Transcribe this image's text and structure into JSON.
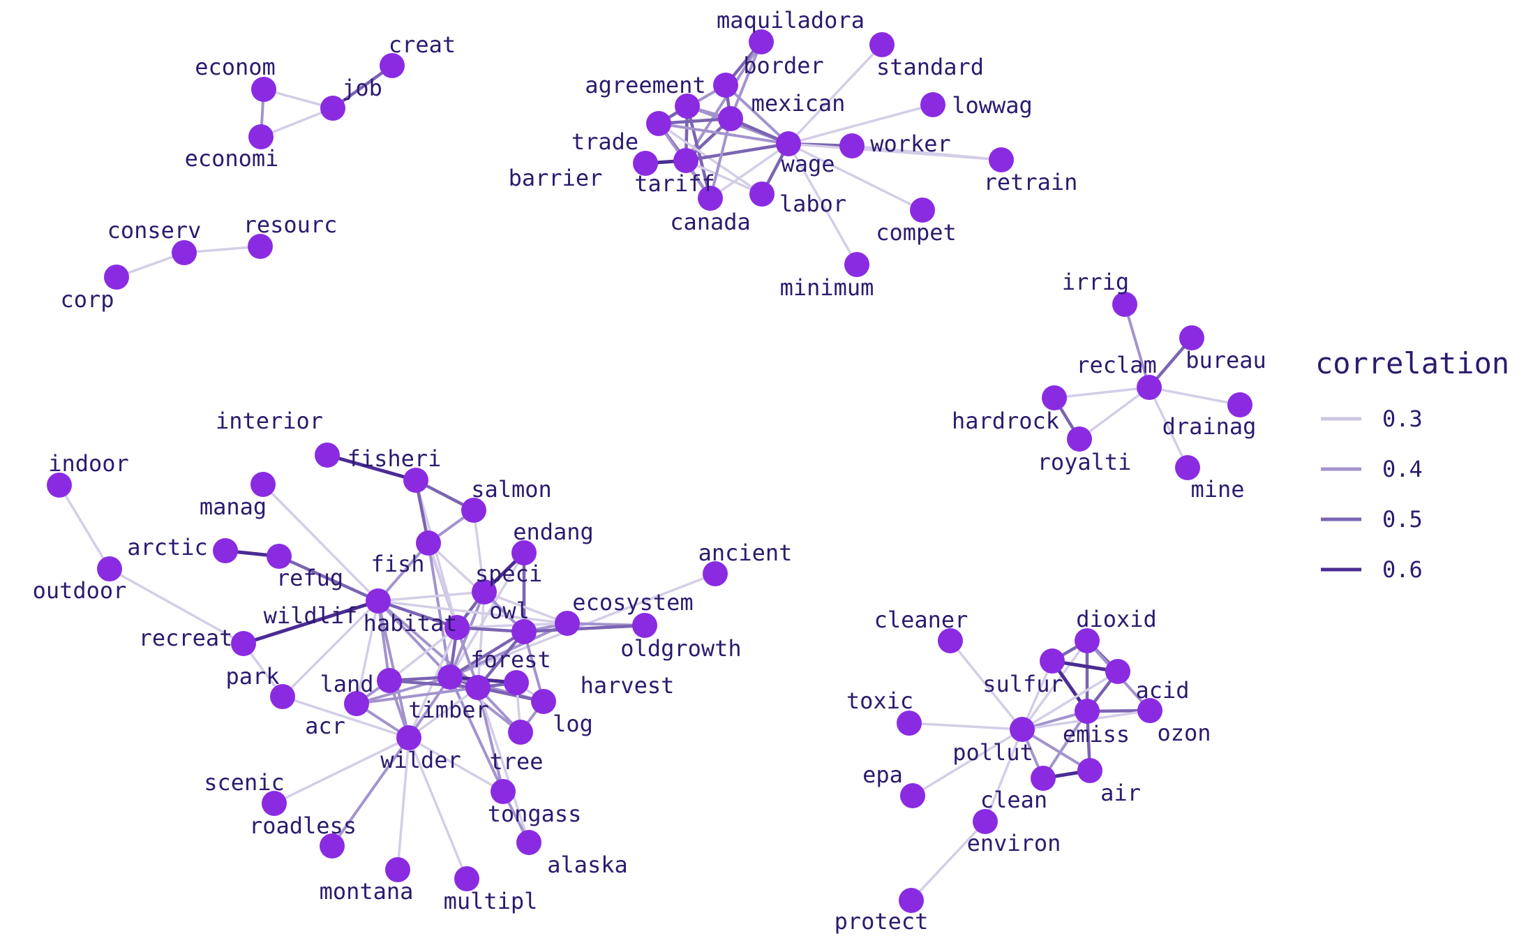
{
  "chart_data": {
    "type": "network",
    "title": "",
    "node_color": "#8a2be2",
    "label_color": "#2d1a6e",
    "legend": {
      "title": "correlation",
      "placement": "right",
      "entries": [
        {
          "label": "0.3",
          "value": 0.3
        },
        {
          "label": "0.4",
          "value": 0.4
        },
        {
          "label": "0.5",
          "value": 0.5
        },
        {
          "label": "0.6",
          "value": 0.6
        }
      ]
    },
    "nodes": [
      {
        "id": "econom"
      },
      {
        "id": "economi"
      },
      {
        "id": "job"
      },
      {
        "id": "creat"
      },
      {
        "id": "conserv"
      },
      {
        "id": "corp"
      },
      {
        "id": "resourc"
      },
      {
        "id": "maquiladora"
      },
      {
        "id": "standard"
      },
      {
        "id": "border"
      },
      {
        "id": "agreement"
      },
      {
        "id": "mexican"
      },
      {
        "id": "lowwag"
      },
      {
        "id": "trade"
      },
      {
        "id": "worker"
      },
      {
        "id": "wage"
      },
      {
        "id": "retrain"
      },
      {
        "id": "barrier"
      },
      {
        "id": "tariff"
      },
      {
        "id": "labor"
      },
      {
        "id": "canada"
      },
      {
        "id": "compet"
      },
      {
        "id": "minimum"
      },
      {
        "id": "irrig"
      },
      {
        "id": "bureau"
      },
      {
        "id": "reclam"
      },
      {
        "id": "hardrock"
      },
      {
        "id": "drainag"
      },
      {
        "id": "royalti"
      },
      {
        "id": "mine"
      },
      {
        "id": "interior"
      },
      {
        "id": "fisheri"
      },
      {
        "id": "indoor"
      },
      {
        "id": "salmon"
      },
      {
        "id": "manag"
      },
      {
        "id": "endang"
      },
      {
        "id": "arctic"
      },
      {
        "id": "fish"
      },
      {
        "id": "refug"
      },
      {
        "id": "speci"
      },
      {
        "id": "ancient"
      },
      {
        "id": "outdoor"
      },
      {
        "id": "ecosystem"
      },
      {
        "id": "wildlif"
      },
      {
        "id": "owl"
      },
      {
        "id": "habitat"
      },
      {
        "id": "oldgrowth"
      },
      {
        "id": "recreat"
      },
      {
        "id": "forest"
      },
      {
        "id": "park"
      },
      {
        "id": "harvest"
      },
      {
        "id": "land"
      },
      {
        "id": "log"
      },
      {
        "id": "acr"
      },
      {
        "id": "timber"
      },
      {
        "id": "wilder"
      },
      {
        "id": "tree"
      },
      {
        "id": "scenic"
      },
      {
        "id": "tongass"
      },
      {
        "id": "roadless"
      },
      {
        "id": "alaska"
      },
      {
        "id": "montana"
      },
      {
        "id": "multipl"
      },
      {
        "id": "cleaner"
      },
      {
        "id": "dioxid"
      },
      {
        "id": "sulfur"
      },
      {
        "id": "acid"
      },
      {
        "id": "toxic"
      },
      {
        "id": "emiss"
      },
      {
        "id": "ozon"
      },
      {
        "id": "pollut"
      },
      {
        "id": "epa"
      },
      {
        "id": "air"
      },
      {
        "id": "clean"
      },
      {
        "id": "environ"
      },
      {
        "id": "protect"
      }
    ],
    "edges": [
      {
        "source": "econom",
        "target": "economi",
        "correlation": 0.45
      },
      {
        "source": "econom",
        "target": "job",
        "correlation": 0.3
      },
      {
        "source": "economi",
        "target": "job",
        "correlation": 0.3
      },
      {
        "source": "job",
        "target": "creat",
        "correlation": 0.5
      },
      {
        "source": "conserv",
        "target": "corp",
        "correlation": 0.3
      },
      {
        "source": "conserv",
        "target": "resourc",
        "correlation": 0.3
      },
      {
        "source": "maquiladora",
        "target": "border",
        "correlation": 0.5
      },
      {
        "source": "maquiladora",
        "target": "mexican",
        "correlation": 0.4
      },
      {
        "source": "maquiladora",
        "target": "tariff",
        "correlation": 0.45
      },
      {
        "source": "standard",
        "target": "wage",
        "correlation": 0.28
      },
      {
        "source": "border",
        "target": "mexican",
        "correlation": 0.5
      },
      {
        "source": "border",
        "target": "trade",
        "correlation": 0.4
      },
      {
        "source": "border",
        "target": "wage",
        "correlation": 0.4
      },
      {
        "source": "agreement",
        "target": "trade",
        "correlation": 0.55
      },
      {
        "source": "agreement",
        "target": "mexican",
        "correlation": 0.45
      },
      {
        "source": "agreement",
        "target": "canada",
        "correlation": 0.5
      },
      {
        "source": "agreement",
        "target": "tariff",
        "correlation": 0.5
      },
      {
        "source": "agreement",
        "target": "wage",
        "correlation": 0.4
      },
      {
        "source": "mexican",
        "target": "wage",
        "correlation": 0.55
      },
      {
        "source": "mexican",
        "target": "tariff",
        "correlation": 0.5
      },
      {
        "source": "mexican",
        "target": "trade",
        "correlation": 0.55
      },
      {
        "source": "lowwag",
        "target": "wage",
        "correlation": 0.3
      },
      {
        "source": "trade",
        "target": "tariff",
        "correlation": 0.55
      },
      {
        "source": "trade",
        "target": "canada",
        "correlation": 0.45
      },
      {
        "source": "trade",
        "target": "wage",
        "correlation": 0.4
      },
      {
        "source": "trade",
        "target": "labor",
        "correlation": 0.35
      },
      {
        "source": "worker",
        "target": "wage",
        "correlation": 0.5
      },
      {
        "source": "worker",
        "target": "retrain",
        "correlation": 0.3
      },
      {
        "source": "wage",
        "target": "minimum",
        "correlation": 0.35
      },
      {
        "source": "wage",
        "target": "compet",
        "correlation": 0.3
      },
      {
        "source": "wage",
        "target": "labor",
        "correlation": 0.5
      },
      {
        "source": "wage",
        "target": "tariff",
        "correlation": 0.5
      },
      {
        "source": "wage",
        "target": "canada",
        "correlation": 0.35
      },
      {
        "source": "wage",
        "target": "retrain",
        "correlation": 0.28
      },
      {
        "source": "barrier",
        "target": "tariff",
        "correlation": 0.62
      },
      {
        "source": "tariff",
        "target": "canada",
        "correlation": 0.45
      },
      {
        "source": "tariff",
        "target": "labor",
        "correlation": 0.35
      },
      {
        "source": "canada",
        "target": "mexican",
        "correlation": 0.4
      },
      {
        "source": "irrig",
        "target": "reclam",
        "correlation": 0.4
      },
      {
        "source": "bureau",
        "target": "reclam",
        "correlation": 0.55
      },
      {
        "source": "reclam",
        "target": "hardrock",
        "correlation": 0.3
      },
      {
        "source": "reclam",
        "target": "royalti",
        "correlation": 0.3
      },
      {
        "source": "reclam",
        "target": "drainag",
        "correlation": 0.3
      },
      {
        "source": "reclam",
        "target": "mine",
        "correlation": 0.3
      },
      {
        "source": "hardrock",
        "target": "royalti",
        "correlation": 0.55
      },
      {
        "source": "interior",
        "target": "fisheri",
        "correlation": 0.6
      },
      {
        "source": "fisheri",
        "target": "habitat",
        "correlation": 0.3
      },
      {
        "source": "indoor",
        "target": "outdoor",
        "correlation": 0.3
      },
      {
        "source": "outdoor",
        "target": "recreat",
        "correlation": 0.3
      },
      {
        "source": "fish",
        "target": "salmon",
        "correlation": 0.45
      },
      {
        "source": "fish",
        "target": "wildlif",
        "correlation": 0.45
      },
      {
        "source": "fish",
        "target": "habitat",
        "correlation": 0.45
      },
      {
        "source": "fish",
        "target": "forest",
        "correlation": 0.45
      },
      {
        "source": "fish",
        "target": "timber",
        "correlation": 0.35
      },
      {
        "source": "fish",
        "target": "owl",
        "correlation": 0.35
      },
      {
        "source": "salmon",
        "target": "fisheri",
        "correlation": 0.5
      },
      {
        "source": "salmon",
        "target": "speci",
        "correlation": 0.35
      },
      {
        "source": "endang",
        "target": "speci",
        "correlation": 0.6
      },
      {
        "source": "endang",
        "target": "owl",
        "correlation": 0.5
      },
      {
        "source": "endang",
        "target": "forest",
        "correlation": 0.3
      },
      {
        "source": "arctic",
        "target": "refug",
        "correlation": 0.6
      },
      {
        "source": "refug",
        "target": "wildlif",
        "correlation": 0.5
      },
      {
        "source": "fisheri",
        "target": "fish",
        "correlation": 0.5
      },
      {
        "source": "speci",
        "target": "habitat",
        "correlation": 0.5
      },
      {
        "source": "speci",
        "target": "owl",
        "correlation": 0.45
      },
      {
        "source": "speci",
        "target": "forest",
        "correlation": 0.45
      },
      {
        "source": "speci",
        "target": "ecosystem",
        "correlation": 0.35
      },
      {
        "source": "speci",
        "target": "timber",
        "correlation": 0.35
      },
      {
        "source": "speci",
        "target": "wildlif",
        "correlation": 0.35
      },
      {
        "source": "ancient",
        "target": "forest",
        "correlation": 0.3
      },
      {
        "source": "ecosystem",
        "target": "oldgrowth",
        "correlation": 0.45
      },
      {
        "source": "ecosystem",
        "target": "owl",
        "correlation": 0.45
      },
      {
        "source": "ecosystem",
        "target": "forest",
        "correlation": 0.4
      },
      {
        "source": "ecosystem",
        "target": "habitat",
        "correlation": 0.3
      },
      {
        "source": "ecosystem",
        "target": "wildlif",
        "correlation": 0.3
      },
      {
        "source": "wildlif",
        "target": "habitat",
        "correlation": 0.5
      },
      {
        "source": "wildlif",
        "target": "manag",
        "correlation": 0.3
      },
      {
        "source": "wildlif",
        "target": "recreat",
        "correlation": 0.3
      },
      {
        "source": "wildlif",
        "target": "land",
        "correlation": 0.4
      },
      {
        "source": "wildlif",
        "target": "wilder",
        "correlation": 0.4
      },
      {
        "source": "wildlif",
        "target": "timber",
        "correlation": 0.45
      },
      {
        "source": "wildlif",
        "target": "forest",
        "correlation": 0.45
      },
      {
        "source": "wildlif",
        "target": "acr",
        "correlation": 0.35
      },
      {
        "source": "wildlif",
        "target": "park",
        "correlation": 0.3
      },
      {
        "source": "owl",
        "target": "habitat",
        "correlation": 0.5
      },
      {
        "source": "owl",
        "target": "forest",
        "correlation": 0.55
      },
      {
        "source": "owl",
        "target": "oldgrowth",
        "correlation": 0.5
      },
      {
        "source": "owl",
        "target": "timber",
        "correlation": 0.5
      },
      {
        "source": "owl",
        "target": "log",
        "correlation": 0.4
      },
      {
        "source": "habitat",
        "target": "forest",
        "correlation": 0.5
      },
      {
        "source": "habitat",
        "target": "timber",
        "correlation": 0.45
      },
      {
        "source": "habitat",
        "target": "land",
        "correlation": 0.35
      },
      {
        "source": "habitat",
        "target": "wilder",
        "correlation": 0.35
      },
      {
        "source": "recreat",
        "target": "park",
        "correlation": 0.3
      },
      {
        "source": "recreat",
        "target": "wildlif",
        "correlation": 0.6
      },
      {
        "source": "forest",
        "target": "timber",
        "correlation": 0.55
      },
      {
        "source": "forest",
        "target": "land",
        "correlation": 0.5
      },
      {
        "source": "forest",
        "target": "harvest",
        "correlation": 0.45
      },
      {
        "source": "forest",
        "target": "log",
        "correlation": 0.45
      },
      {
        "source": "forest",
        "target": "tree",
        "correlation": 0.45
      },
      {
        "source": "forest",
        "target": "wilder",
        "correlation": 0.4
      },
      {
        "source": "forest",
        "target": "acr",
        "correlation": 0.45
      },
      {
        "source": "forest",
        "target": "tongass",
        "correlation": 0.4
      },
      {
        "source": "timber",
        "target": "harvest",
        "correlation": 0.55
      },
      {
        "source": "timber",
        "target": "log",
        "correlation": 0.5
      },
      {
        "source": "timber",
        "target": "tree",
        "correlation": 0.45
      },
      {
        "source": "timber",
        "target": "land",
        "correlation": 0.5
      },
      {
        "source": "timber",
        "target": "acr",
        "correlation": 0.45
      },
      {
        "source": "timber",
        "target": "wilder",
        "correlation": 0.35
      },
      {
        "source": "timber",
        "target": "tongass",
        "correlation": 0.45
      },
      {
        "source": "timber",
        "target": "alaska",
        "correlation": 0.35
      },
      {
        "source": "harvest",
        "target": "log",
        "correlation": 0.35
      },
      {
        "source": "harvest",
        "target": "tree",
        "correlation": 0.35
      },
      {
        "source": "harvest",
        "target": "forest",
        "correlation": 0.62
      },
      {
        "source": "land",
        "target": "acr",
        "correlation": 0.45
      },
      {
        "source": "land",
        "target": "wilder",
        "correlation": 0.45
      },
      {
        "source": "acr",
        "target": "wilder",
        "correlation": 0.45
      },
      {
        "source": "wilder",
        "target": "scenic",
        "correlation": 0.3
      },
      {
        "source": "wilder",
        "target": "roadless",
        "correlation": 0.4
      },
      {
        "source": "wilder",
        "target": "montana",
        "correlation": 0.3
      },
      {
        "source": "wilder",
        "target": "multipl",
        "correlation": 0.3
      },
      {
        "source": "wilder",
        "target": "park",
        "correlation": 0.35
      },
      {
        "source": "wilder",
        "target": "tongass",
        "correlation": 0.35
      },
      {
        "source": "tongass",
        "target": "alaska",
        "correlation": 0.45
      },
      {
        "source": "tree",
        "target": "log",
        "correlation": 0.4
      },
      {
        "source": "cleaner",
        "target": "pollut",
        "correlation": 0.3
      },
      {
        "source": "dioxid",
        "target": "sulfur",
        "correlation": 0.55
      },
      {
        "source": "dioxid",
        "target": "acid",
        "correlation": 0.55
      },
      {
        "source": "dioxid",
        "target": "emiss",
        "correlation": 0.55
      },
      {
        "source": "dioxid",
        "target": "ozon",
        "correlation": 0.4
      },
      {
        "source": "dioxid",
        "target": "pollut",
        "correlation": 0.35
      },
      {
        "source": "sulfur",
        "target": "acid",
        "correlation": 0.62
      },
      {
        "source": "sulfur",
        "target": "emiss",
        "correlation": 0.6
      },
      {
        "source": "sulfur",
        "target": "pollut",
        "correlation": 0.35
      },
      {
        "source": "acid",
        "target": "emiss",
        "correlation": 0.5
      },
      {
        "source": "acid",
        "target": "pollut",
        "correlation": 0.3
      },
      {
        "source": "toxic",
        "target": "pollut",
        "correlation": 0.3
      },
      {
        "source": "emiss",
        "target": "ozon",
        "correlation": 0.5
      },
      {
        "source": "emiss",
        "target": "pollut",
        "correlation": 0.45
      },
      {
        "source": "emiss",
        "target": "air",
        "correlation": 0.5
      },
      {
        "source": "emiss",
        "target": "clean",
        "correlation": 0.45
      },
      {
        "source": "pollut",
        "target": "air",
        "correlation": 0.45
      },
      {
        "source": "pollut",
        "target": "clean",
        "correlation": 0.45
      },
      {
        "source": "pollut",
        "target": "epa",
        "correlation": 0.3
      },
      {
        "source": "pollut",
        "target": "environ",
        "correlation": 0.35
      },
      {
        "source": "pollut",
        "target": "ozon",
        "correlation": 0.3
      },
      {
        "source": "clean",
        "target": "air",
        "correlation": 0.6
      },
      {
        "source": "environ",
        "target": "protect",
        "correlation": 0.3
      }
    ]
  }
}
